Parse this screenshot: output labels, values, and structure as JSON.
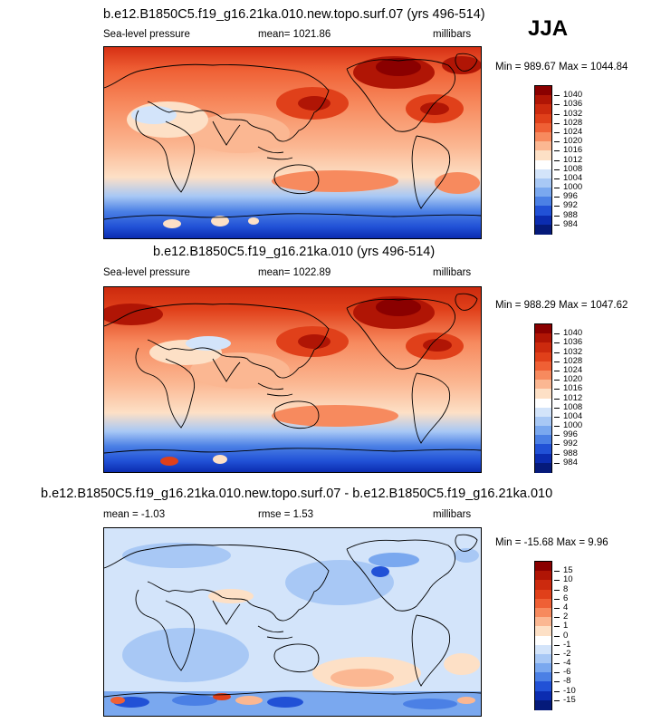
{
  "season": "JJA",
  "panels": [
    {
      "title": "b.e12.B1850C5.f19_g16.21ka.010.new.topo.surf.07 (yrs 496-514)",
      "left_label": "Sea-level pressure",
      "center_label": "mean= 1021.86",
      "right_label": "millibars",
      "minmax": "Min = 989.67 Max = 1044.84",
      "colorbar": {
        "labels": [
          "1040",
          "1036",
          "1032",
          "1028",
          "1024",
          "1020",
          "1016",
          "1012",
          "1008",
          "1004",
          "1000",
          "996",
          "992",
          "988",
          "984"
        ],
        "colors": [
          "#8a0000",
          "#b01505",
          "#cc2a0e",
          "#e0401a",
          "#ef6035",
          "#f78a5e",
          "#fbb792",
          "#fde0c6",
          "#ffffff",
          "#d3e4fa",
          "#a8c8f5",
          "#7aa8ef",
          "#4b80e5",
          "#2151d6",
          "#0b2cb0",
          "#051a7a"
        ]
      }
    },
    {
      "title": "b.e12.B1850C5.f19_g16.21ka.010 (yrs 496-514)",
      "left_label": "Sea-level pressure",
      "center_label": "mean= 1022.89",
      "right_label": "millibars",
      "minmax": "Min = 988.29 Max = 1047.62",
      "colorbar": {
        "labels": [
          "1040",
          "1036",
          "1032",
          "1028",
          "1024",
          "1020",
          "1016",
          "1012",
          "1008",
          "1004",
          "1000",
          "996",
          "992",
          "988",
          "984"
        ],
        "colors": [
          "#8a0000",
          "#b01505",
          "#cc2a0e",
          "#e0401a",
          "#ef6035",
          "#f78a5e",
          "#fbb792",
          "#fde0c6",
          "#ffffff",
          "#d3e4fa",
          "#a8c8f5",
          "#7aa8ef",
          "#4b80e5",
          "#2151d6",
          "#0b2cb0",
          "#051a7a"
        ]
      }
    },
    {
      "title": "b.e12.B1850C5.f19_g16.21ka.010.new.topo.surf.07 - b.e12.B1850C5.f19_g16.21ka.010",
      "left_label": "mean =  -1.03",
      "center_label": "rmse =    1.53",
      "right_label": "millibars",
      "minmax": "Min = -15.68 Max =   9.96",
      "colorbar": {
        "labels": [
          "15",
          "10",
          "8",
          "6",
          "4",
          "2",
          "1",
          "0",
          "-1",
          "-2",
          "-4",
          "-6",
          "-8",
          "-10",
          "-15"
        ],
        "colors": [
          "#8a0000",
          "#b01505",
          "#cc2a0e",
          "#e0401a",
          "#ef6035",
          "#f78a5e",
          "#fbb792",
          "#fde0c6",
          "#ffffff",
          "#d3e4fa",
          "#a8c8f5",
          "#7aa8ef",
          "#4b80e5",
          "#2151d6",
          "#0b2cb0",
          "#051a7a"
        ]
      }
    }
  ]
}
